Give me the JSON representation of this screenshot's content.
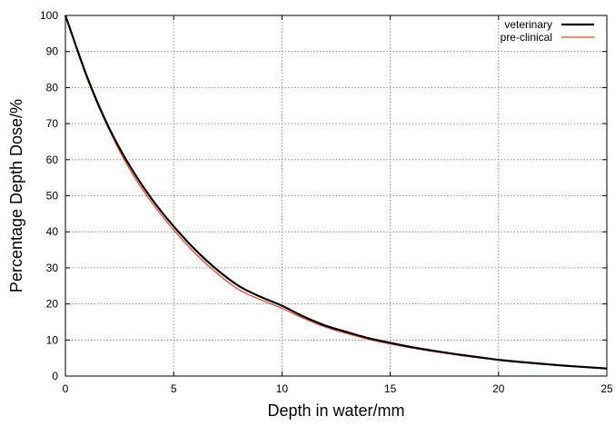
{
  "chart_data": {
    "type": "line",
    "title": "",
    "xlabel": "Depth in water/mm",
    "ylabel": "Percentage Depth Dose/%",
    "xlim": [
      0,
      25
    ],
    "ylim": [
      0,
      100
    ],
    "xticks": [
      0,
      5,
      10,
      15,
      20,
      25
    ],
    "yticks": [
      0,
      10,
      20,
      30,
      40,
      50,
      60,
      70,
      80,
      90,
      100
    ],
    "grid": true,
    "grid_style": "dotted",
    "legend_position": "top-right",
    "x": [
      0,
      1,
      2,
      3,
      4,
      5,
      6,
      7,
      8,
      9,
      10,
      11,
      12,
      13,
      14,
      15,
      16,
      17,
      18,
      19,
      20,
      21,
      22,
      23,
      24,
      25
    ],
    "series": [
      {
        "name": "veterinary",
        "color": "#000000",
        "values": [
          100,
          83,
          69,
          58,
          49,
          41.5,
          35,
          29.5,
          25,
          22,
          19.5,
          16.5,
          14,
          12.2,
          10.5,
          9.2,
          8,
          7,
          6.1,
          5.3,
          4.5,
          3.9,
          3.4,
          2.9,
          2.5,
          2.1
        ]
      },
      {
        "name": "pre-clinical",
        "color": "#e8412c",
        "values": [
          100,
          82.5,
          68.5,
          57,
          48,
          40.5,
          34,
          28.5,
          24,
          21.2,
          18.8,
          16,
          13.6,
          11.8,
          10.2,
          8.9,
          7.8,
          6.8,
          5.9,
          5.1,
          4.4,
          3.8,
          3.3,
          2.8,
          2.4,
          2.0
        ]
      }
    ]
  }
}
